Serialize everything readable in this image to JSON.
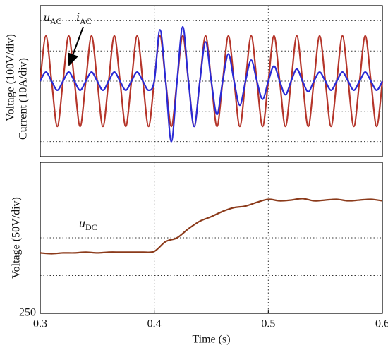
{
  "chart_data": [
    {
      "type": "line",
      "ylabel": [
        "Voltage (100V/div)",
        "Current (10A/div)"
      ],
      "annotations": [
        {
          "text": "u",
          "sub": "AC"
        },
        {
          "text": "i",
          "sub": "AC"
        }
      ],
      "x": [
        0.3,
        0.305,
        0.31,
        0.315,
        0.32,
        0.325,
        0.33,
        0.335,
        0.34,
        0.345,
        0.35,
        0.355,
        0.36,
        0.365,
        0.37,
        0.375,
        0.38,
        0.385,
        0.39,
        0.395,
        0.4,
        0.405,
        0.41,
        0.415,
        0.42,
        0.425,
        0.43,
        0.435,
        0.44,
        0.445,
        0.45,
        0.455,
        0.46,
        0.465,
        0.47,
        0.475,
        0.48,
        0.485,
        0.49,
        0.495,
        0.5,
        0.505,
        0.51,
        0.515,
        0.52,
        0.525,
        0.53,
        0.535,
        0.54,
        0.545,
        0.55,
        0.555,
        0.56,
        0.565,
        0.57,
        0.575,
        0.58,
        0.585,
        0.59,
        0.595,
        0.6
      ],
      "series": [
        {
          "color": "#b5352a",
          "values": [
            0,
            1.5,
            0,
            -1.5,
            0,
            1.5,
            0,
            -1.5,
            0,
            1.5,
            0,
            -1.5,
            0,
            1.5,
            0,
            -1.5,
            0,
            1.5,
            0,
            -1.5,
            0,
            1.5,
            0,
            -1.5,
            0,
            1.5,
            0,
            -1.5,
            0,
            1.5,
            0,
            -1.5,
            0,
            1.5,
            0,
            -1.5,
            0,
            1.5,
            0,
            -1.5,
            0,
            1.5,
            0,
            -1.5,
            0,
            1.5,
            0,
            -1.5,
            0,
            1.5,
            0,
            -1.5,
            0,
            1.5,
            0,
            -1.5,
            0,
            1.5,
            0,
            -1.5,
            0
          ]
        },
        {
          "color": "#2a2ad6",
          "values": [
            0,
            0.3,
            0,
            -0.3,
            0,
            0.3,
            0,
            -0.3,
            0,
            0.3,
            0,
            -0.3,
            0,
            0.3,
            0,
            -0.3,
            0,
            0.3,
            0,
            -0.3,
            0,
            1.7,
            0,
            -2,
            0,
            1.8,
            0,
            -1.5,
            0,
            1.3,
            0,
            -1.1,
            0,
            0.9,
            0,
            -0.8,
            0,
            0.7,
            0,
            -0.6,
            0,
            0.5,
            0,
            -0.45,
            0,
            0.4,
            0,
            -0.35,
            0,
            0.3,
            0,
            -0.3,
            0,
            0.3,
            0,
            -0.3,
            0,
            0.3,
            0,
            -0.3,
            0
          ]
        }
      ],
      "xlim": [
        0.3,
        0.6
      ],
      "ylim": [
        -2.5,
        2.5
      ],
      "xgrid": [
        0.4,
        0.5
      ],
      "ygrid": [
        -2,
        -1,
        0,
        1,
        2
      ]
    },
    {
      "type": "line",
      "ylabel": [
        "Voltage (50V/div)"
      ],
      "xlabel": "Time (s)",
      "annotations": [
        {
          "text": "u",
          "sub": "DC"
        }
      ],
      "x": [
        0.3,
        0.31,
        0.32,
        0.33,
        0.34,
        0.35,
        0.36,
        0.37,
        0.38,
        0.39,
        0.4,
        0.41,
        0.42,
        0.43,
        0.44,
        0.45,
        0.46,
        0.47,
        0.48,
        0.49,
        0.5,
        0.51,
        0.52,
        0.53,
        0.54,
        0.55,
        0.56,
        0.57,
        0.58,
        0.59,
        0.6
      ],
      "series": [
        {
          "color": "#8b3a1a",
          "values": [
            330,
            329,
            330,
            330,
            331,
            330,
            331,
            331,
            331,
            331,
            332,
            345,
            350,
            362,
            372,
            378,
            385,
            390,
            392,
            397,
            401,
            399,
            400,
            402,
            399,
            400,
            401,
            399,
            400,
            401,
            399
          ]
        }
      ],
      "xlim": [
        0.3,
        0.6
      ],
      "ylim": [
        250,
        450
      ],
      "xticks": [
        0.3,
        0.4,
        0.5,
        0.6
      ],
      "yticks": [
        250
      ],
      "xgrid": [
        0.4,
        0.5
      ],
      "ygrid": [
        300,
        350,
        400
      ]
    }
  ]
}
